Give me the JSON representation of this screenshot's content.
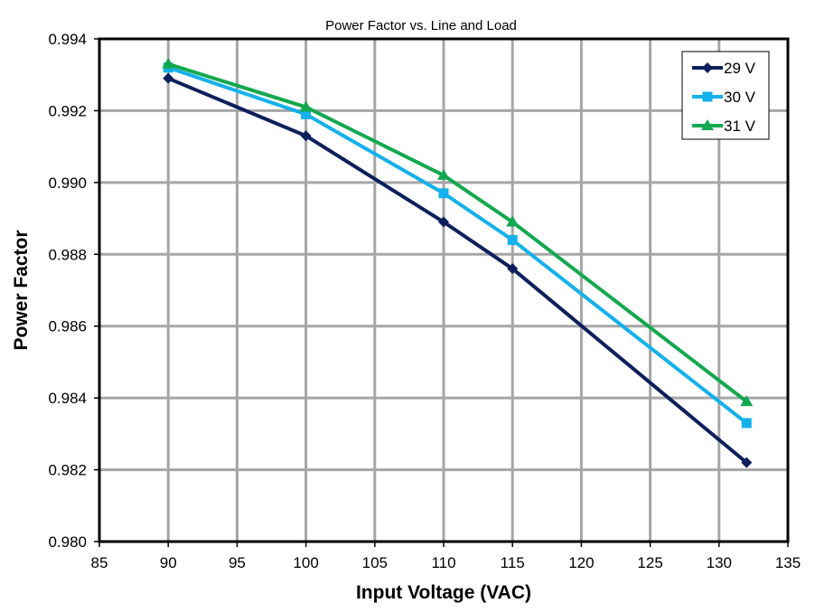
{
  "chart_data": {
    "type": "line",
    "title": "Power Factor vs. Line and Load",
    "xlabel": "Input Voltage (VAC)",
    "ylabel": "Power Factor",
    "xlim": [
      85,
      135
    ],
    "ylim": [
      0.98,
      0.994
    ],
    "xticks": [
      85,
      90,
      95,
      100,
      105,
      110,
      115,
      120,
      125,
      130,
      135
    ],
    "yticks": [
      "0.980",
      "0.982",
      "0.984",
      "0.986",
      "0.988",
      "0.990",
      "0.992",
      "0.994"
    ],
    "grid": true,
    "legend_position": "top-right",
    "x": [
      90,
      100,
      110,
      115,
      132
    ],
    "series": [
      {
        "name": "29 V",
        "color": "#0d1f5c",
        "marker": "diamond",
        "values": [
          0.9929,
          0.9913,
          0.9889,
          0.9876,
          0.9822
        ]
      },
      {
        "name": "30 V",
        "color": "#14b1ec",
        "marker": "square",
        "values": [
          0.9932,
          0.9919,
          0.9897,
          0.9884,
          0.9833
        ]
      },
      {
        "name": "31 V",
        "color": "#13a84f",
        "marker": "triangle",
        "values": [
          0.9933,
          0.9921,
          0.9902,
          0.9889,
          0.9839
        ]
      }
    ]
  }
}
